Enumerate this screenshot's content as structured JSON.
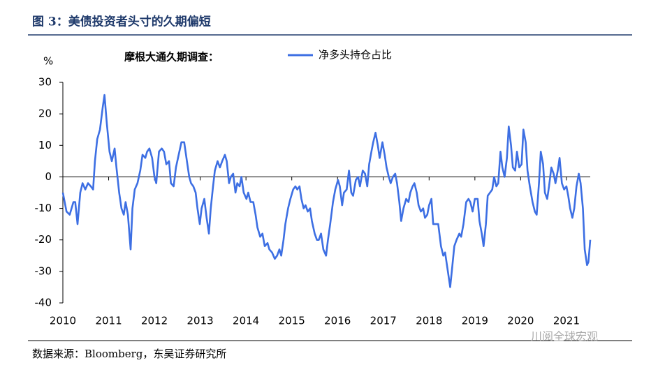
{
  "chart_data": {
    "type": "line",
    "title": "图 3：美债投资者头寸的久期偏短",
    "legend_title": "摩根大通久期调查：",
    "y_unit": "%",
    "source": "数据来源：Bloomberg，东吴证券研究所",
    "watermark": "川阅全球宏观",
    "x": [
      2010.0,
      2010.08,
      2010.15,
      2010.23,
      2010.27,
      2010.32,
      2010.38,
      2010.43,
      2010.49,
      2010.55,
      2010.61,
      2010.66,
      2010.7,
      2010.75,
      2010.81,
      2010.87,
      2010.91,
      2010.96,
      2011.02,
      2011.07,
      2011.13,
      2011.17,
      2011.23,
      2011.28,
      2011.33,
      2011.37,
      2011.42,
      2011.48,
      2011.52,
      2011.57,
      2011.63,
      2011.69,
      2011.74,
      2011.8,
      2011.84,
      2011.89,
      2011.95,
      2012.0,
      2012.04,
      2012.1,
      2012.16,
      2012.21,
      2012.26,
      2012.32,
      2012.36,
      2012.42,
      2012.47,
      2012.53,
      2012.59,
      2012.65,
      2012.71,
      2012.76,
      2012.8,
      2012.85,
      2012.9,
      2012.94,
      2012.99,
      2013.03,
      2013.09,
      2013.14,
      2013.19,
      2013.23,
      2013.28,
      2013.32,
      2013.38,
      2013.43,
      2013.48,
      2013.54,
      2013.58,
      2013.63,
      2013.67,
      2013.72,
      2013.77,
      2013.81,
      2013.86,
      2013.9,
      2013.95,
      2014.01,
      2014.05,
      2014.1,
      2014.16,
      2014.21,
      2014.25,
      2014.31,
      2014.36,
      2014.41,
      2014.47,
      2014.51,
      2014.57,
      2014.63,
      2014.68,
      2014.73,
      2014.77,
      2014.82,
      2014.86,
      2014.92,
      2014.97,
      2015.03,
      2015.08,
      2015.12,
      2015.17,
      2015.21,
      2015.26,
      2015.3,
      2015.35,
      2015.4,
      2015.44,
      2015.5,
      2015.55,
      2015.59,
      2015.64,
      2015.69,
      2015.75,
      2015.79,
      2015.84,
      2015.9,
      2015.95,
      2016.01,
      2016.05,
      2016.1,
      2016.14,
      2016.2,
      2016.25,
      2016.3,
      2016.34,
      2016.4,
      2016.45,
      2016.49,
      2016.55,
      2016.6,
      2016.65,
      2016.69,
      2016.74,
      2016.78,
      2016.83,
      2016.88,
      2016.92,
      2016.98,
      2017.03,
      2017.07,
      2017.12,
      2017.16,
      2017.21,
      2017.26,
      2017.3,
      2017.35,
      2017.39,
      2017.44,
      2017.5,
      2017.55,
      2017.59,
      2017.64,
      2017.68,
      2017.73,
      2017.77,
      2017.82,
      2017.87,
      2017.91,
      2017.96,
      2018.0,
      2018.05,
      2018.09,
      2018.16,
      2018.2,
      2018.26,
      2018.31,
      2018.35,
      2018.41,
      2018.46,
      2018.51,
      2018.55,
      2018.6,
      2018.66,
      2018.7,
      2018.75,
      2018.81,
      2018.86,
      2018.9,
      2018.95,
      2019.0,
      2019.06,
      2019.1,
      2019.15,
      2019.19,
      2019.24,
      2019.28,
      2019.33,
      2019.38,
      2019.42,
      2019.47,
      2019.51,
      2019.56,
      2019.6,
      2019.65,
      2019.7,
      2019.74,
      2019.79,
      2019.83,
      2019.88,
      2019.92,
      2019.97,
      2020.02,
      2020.06,
      2020.11,
      2020.15,
      2020.2,
      2020.26,
      2020.31,
      2020.35,
      2020.4,
      2020.44,
      2020.49,
      2020.53,
      2020.58,
      2020.62,
      2020.67,
      2020.72,
      2020.76,
      2020.81,
      2020.85,
      2020.9,
      2020.95,
      2021.0,
      2021.04,
      2021.08,
      2021.13,
      2021.17,
      2021.22,
      2021.27,
      2021.31,
      2021.36,
      2021.4,
      2021.45,
      2021.48,
      2021.52
    ],
    "series": [
      {
        "name": "净多头持仓占比",
        "color": "#3d6fe3",
        "values": [
          -5,
          -11,
          -12,
          -8,
          -8,
          -15,
          -5,
          -2,
          -4,
          -2,
          -3,
          -4,
          5,
          12,
          15,
          22,
          26,
          17,
          8,
          5,
          9,
          3,
          -5,
          -10,
          -12,
          -8,
          -12,
          -23,
          -10,
          -4,
          -2,
          2,
          7,
          6,
          8,
          9,
          6,
          0,
          -2,
          8,
          9,
          8,
          4,
          5,
          -2,
          -3,
          3,
          7,
          11,
          11,
          5,
          0,
          -2,
          -3,
          -5,
          -10,
          -15,
          -10,
          -7,
          -13,
          -18,
          -10,
          -3,
          2,
          5,
          3,
          5,
          7,
          5,
          -2,
          0,
          1,
          -5,
          -2,
          -3,
          0,
          -5,
          -7,
          -5,
          -8,
          -8,
          -12,
          -16,
          -19,
          -18,
          -22,
          -21,
          -23,
          -24,
          -26,
          -25,
          -23,
          -25,
          -20,
          -15,
          -10,
          -7,
          -4,
          -3,
          -4,
          -3,
          -7,
          -10,
          -9,
          -11,
          -10,
          -14,
          -18,
          -20,
          -20,
          -18,
          -23,
          -25,
          -20,
          -15,
          -8,
          -4,
          -1,
          -3,
          -9,
          -5,
          -4,
          2,
          -5,
          -6,
          -1,
          0,
          -3,
          2,
          1,
          -3,
          4,
          8,
          11,
          14,
          10,
          6,
          11,
          7,
          3,
          0,
          -2,
          0,
          1,
          -2,
          -8,
          -14,
          -10,
          -7,
          -8,
          -5,
          -3,
          -2,
          -5,
          -9,
          -11,
          -10,
          -13,
          -12,
          -9,
          -7,
          -15,
          -15,
          -15,
          -22,
          -25,
          -24,
          -30,
          -35,
          -28,
          -22,
          -20,
          -18,
          -19,
          -15,
          -8,
          -7,
          -8,
          -11,
          -7,
          -7,
          -14,
          -18,
          -22,
          -15,
          -6,
          -5,
          -4,
          0,
          -3,
          -2,
          8,
          3,
          0,
          6,
          16,
          10,
          3,
          2,
          8,
          3,
          4,
          15,
          11,
          2,
          -3,
          -8,
          -11,
          -12,
          -2,
          8,
          4,
          -5,
          -7,
          -3,
          3,
          1,
          -2,
          2,
          6,
          -2,
          -4,
          -3,
          -6,
          -10,
          -13,
          -10,
          -3,
          1,
          -2,
          -10,
          -23,
          -28,
          -27,
          -20
        ]
      }
    ],
    "xlim": [
      2010,
      2021.52
    ],
    "xticks": [
      2010,
      2011,
      2012,
      2013,
      2014,
      2015,
      2016,
      2017,
      2018,
      2019,
      2020,
      2021
    ],
    "ylim": [
      -40,
      30
    ],
    "yticks": [
      30,
      20,
      10,
      0,
      -10,
      -20,
      -30,
      -40
    ]
  }
}
